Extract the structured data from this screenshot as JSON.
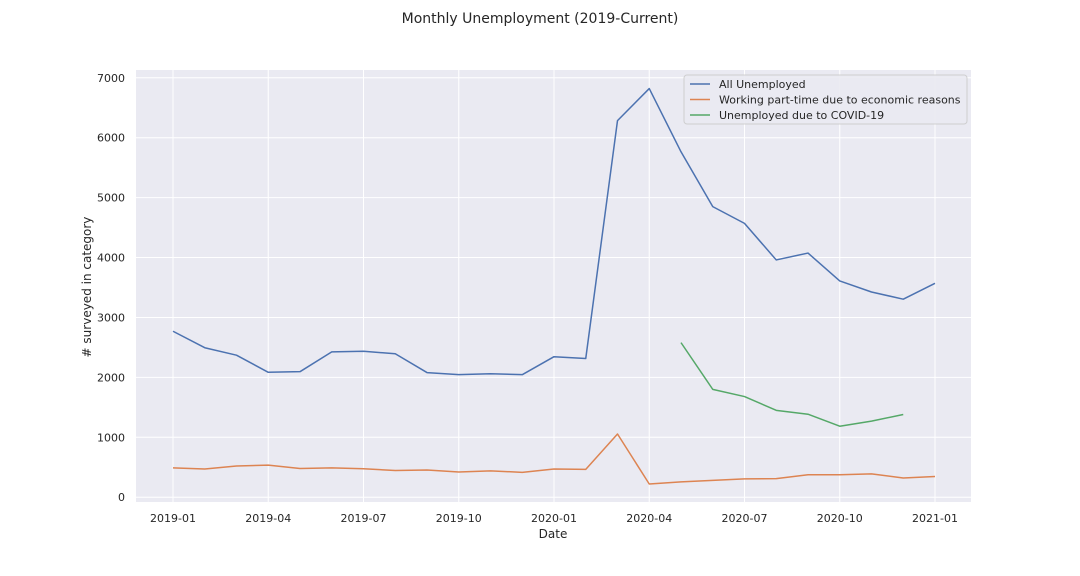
{
  "chart_data": {
    "type": "line",
    "title": "Monthly Unemployment (2019-Current)",
    "xlabel": "Date",
    "ylabel": "# surveyed in category",
    "x": [
      "2019-01",
      "2019-02",
      "2019-03",
      "2019-04",
      "2019-05",
      "2019-06",
      "2019-07",
      "2019-08",
      "2019-09",
      "2019-10",
      "2019-11",
      "2019-12",
      "2020-01",
      "2020-02",
      "2020-03",
      "2020-04",
      "2020-05",
      "2020-06",
      "2020-07",
      "2020-08",
      "2020-09",
      "2020-10",
      "2020-11",
      "2020-12",
      "2021-01"
    ],
    "x_ticks": [
      "2019-01",
      "2019-04",
      "2019-07",
      "2019-10",
      "2020-01",
      "2020-04",
      "2020-07",
      "2020-10",
      "2021-01"
    ],
    "y_ticks": [
      0,
      1000,
      2000,
      3000,
      4000,
      5000,
      6000,
      7000
    ],
    "ylim": [
      -80,
      7130
    ],
    "grid": true,
    "legend_position": "top-right",
    "series": [
      {
        "name": "All Unemployed",
        "color": "#4c72b0",
        "values": [
          2770,
          2495,
          2370,
          2085,
          2095,
          2425,
          2435,
          2395,
          2080,
          2045,
          2060,
          2045,
          2345,
          2315,
          6285,
          6820,
          5765,
          4850,
          4570,
          3960,
          4075,
          3610,
          3425,
          3305,
          3570
        ]
      },
      {
        "name": "Working part-time due to economic reasons",
        "color": "#dd8452",
        "values": [
          490,
          470,
          520,
          535,
          480,
          490,
          475,
          445,
          455,
          420,
          440,
          415,
          470,
          465,
          1055,
          220,
          255,
          280,
          305,
          310,
          375,
          375,
          390,
          320,
          345
        ]
      },
      {
        "name": "Unemployed due to COVID-19",
        "color": "#55a868",
        "values": [
          null,
          null,
          null,
          null,
          null,
          null,
          null,
          null,
          null,
          null,
          null,
          null,
          null,
          null,
          null,
          null,
          2580,
          1800,
          1680,
          1450,
          1385,
          1185,
          1270,
          1380,
          null
        ]
      }
    ]
  }
}
